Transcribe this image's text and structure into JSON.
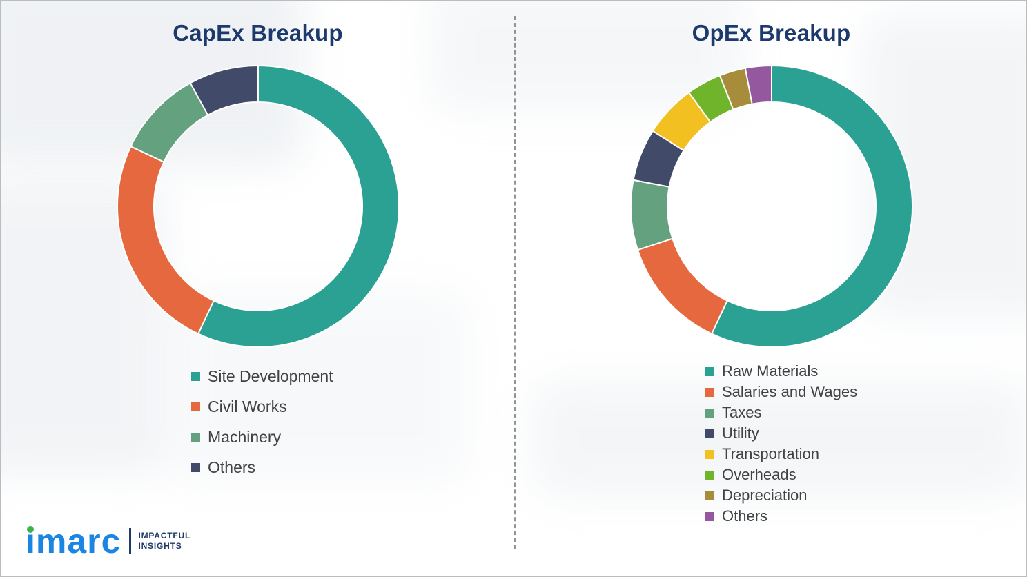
{
  "theme": {
    "background": "#ffffff",
    "title_color": "#1d3a6d",
    "legend_text": "#3f4345",
    "logo_blue": "#1b85e3",
    "logo_navy": "#1f3a68",
    "logo_dot": "#3cb44a",
    "divider": "#8f9499"
  },
  "logo": {
    "brand": "imarc",
    "tagline": [
      "IMPACTFUL",
      "INSIGHTS"
    ]
  },
  "chart_data": [
    {
      "type": "pie",
      "variant": "donut",
      "title": "CapEx Breakup",
      "labels": [
        "Site Development",
        "Civil Works",
        "Machinery",
        "Others"
      ],
      "values": [
        57,
        25,
        10,
        8
      ],
      "values_unit": "%",
      "values_are_estimates": true,
      "colors": [
        "#2aa193",
        "#e5683e",
        "#63a17f",
        "#414a68"
      ],
      "start_angle_deg": 0,
      "direction": "clockwise",
      "donut_hole_ratio": 0.74,
      "legend_position": "below-left"
    },
    {
      "type": "pie",
      "variant": "donut",
      "title": "OpEx Breakup",
      "labels": [
        "Raw Materials",
        "Salaries and Wages",
        "Taxes",
        "Utility",
        "Transportation",
        "Overheads",
        "Depreciation",
        "Others"
      ],
      "values": [
        57,
        13,
        8,
        6,
        6,
        4,
        3,
        3
      ],
      "values_unit": "%",
      "values_are_estimates": true,
      "colors": [
        "#2aa193",
        "#e5683e",
        "#63a17f",
        "#414a68",
        "#f3c022",
        "#70b42c",
        "#a78c3b",
        "#94589f"
      ],
      "start_angle_deg": 0,
      "direction": "clockwise",
      "donut_hole_ratio": 0.74,
      "legend_position": "below-left"
    }
  ]
}
